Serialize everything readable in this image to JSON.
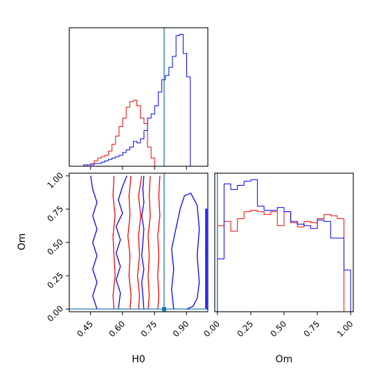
{
  "chart_data": {
    "type": "corner",
    "colors": {
      "series_a": "#ff0000",
      "series_b": "#0000ff",
      "truth": "#1f77b4"
    },
    "truth": {
      "H0": 0.795,
      "Om": 0.0
    },
    "panels": {
      "H0_hist": {
        "type": "histogram",
        "xlim": [
          0.35,
          1.0
        ],
        "x_ticks": [
          0.45,
          0.6,
          0.75,
          0.9
        ],
        "ylabel": "",
        "bins": {
          "start": 0.4,
          "width": 0.0167,
          "series_a": [
            0,
            0,
            1,
            2,
            4,
            6,
            7,
            8,
            11,
            16,
            22,
            29,
            35,
            43,
            47,
            48,
            44,
            35,
            31,
            14,
            6,
            0,
            0,
            0,
            0,
            0,
            0,
            0,
            0,
            0,
            0,
            0,
            0,
            0,
            0,
            0
          ],
          "series_b": [
            0,
            1,
            1,
            1,
            2,
            2,
            3,
            4,
            5,
            6,
            7,
            8,
            10,
            12,
            14,
            18,
            17,
            20,
            26,
            35,
            38,
            44,
            54,
            63,
            66,
            72,
            80,
            95,
            96,
            82,
            65,
            0,
            0,
            0,
            0,
            0
          ]
        }
      },
      "Om_hist": {
        "type": "histogram",
        "xlim": [
          -0.02,
          1.02
        ],
        "xlabel": "Om",
        "x_ticks": [
          "0.00",
          "0.25",
          "0.50",
          "0.75",
          "1.00"
        ],
        "bins": {
          "edges": [
            0.0,
            0.05,
            0.1,
            0.15,
            0.2,
            0.25,
            0.3,
            0.35,
            0.4,
            0.45,
            0.5,
            0.55,
            0.6,
            0.65,
            0.7,
            0.75,
            0.8,
            0.85,
            0.9,
            0.95,
            1.0
          ],
          "series_a": [
            62,
            65,
            58,
            67,
            72,
            73,
            72,
            70,
            72,
            62,
            72,
            64,
            61,
            65,
            64,
            67,
            70,
            69,
            67,
            0
          ],
          "series_b": [
            38,
            92,
            88,
            91,
            94,
            95,
            76,
            73,
            73,
            75,
            72,
            65,
            63,
            62,
            60,
            66,
            65,
            53,
            53,
            30
          ]
        }
      },
      "H0_Om_contour": {
        "type": "contour",
        "xlim": [
          0.35,
          1.0
        ],
        "ylim": [
          -0.02,
          1.02
        ],
        "xlabel": "H0",
        "ylabel": "Om",
        "x_ticks": [
          "0.45",
          "0.60",
          "0.75",
          "0.90"
        ],
        "y_ticks": [
          "0.00",
          "0.25",
          "0.50",
          "0.75",
          "1.00"
        ],
        "series_a_contours": [
          [
            [
              0.56,
              1.0
            ],
            [
              0.555,
              0.85
            ],
            [
              0.565,
              0.7
            ],
            [
              0.555,
              0.55
            ],
            [
              0.56,
              0.4
            ],
            [
              0.565,
              0.25
            ],
            [
              0.555,
              0.1
            ],
            [
              0.56,
              0.0
            ]
          ],
          [
            [
              0.64,
              1.0
            ],
            [
              0.63,
              0.85
            ],
            [
              0.635,
              0.7
            ],
            [
              0.625,
              0.55
            ],
            [
              0.635,
              0.4
            ],
            [
              0.63,
              0.25
            ],
            [
              0.64,
              0.1
            ],
            [
              0.635,
              0.0
            ]
          ],
          [
            [
              0.69,
              1.0
            ],
            [
              0.675,
              0.85
            ],
            [
              0.685,
              0.7
            ],
            [
              0.675,
              0.55
            ],
            [
              0.68,
              0.4
            ],
            [
              0.67,
              0.25
            ],
            [
              0.68,
              0.1
            ],
            [
              0.675,
              0.0
            ]
          ],
          [
            [
              0.73,
              1.0
            ],
            [
              0.725,
              0.85
            ],
            [
              0.73,
              0.7
            ],
            [
              0.72,
              0.55
            ],
            [
              0.725,
              0.4
            ],
            [
              0.72,
              0.25
            ],
            [
              0.725,
              0.1
            ],
            [
              0.72,
              0.0
            ]
          ],
          [
            [
              0.775,
              1.0
            ],
            [
              0.77,
              0.85
            ],
            [
              0.775,
              0.7
            ],
            [
              0.765,
              0.55
            ],
            [
              0.77,
              0.4
            ],
            [
              0.765,
              0.25
            ],
            [
              0.77,
              0.1
            ],
            [
              0.765,
              0.0
            ]
          ]
        ],
        "series_b_contours": [
          [
            [
              0.45,
              1.0
            ],
            [
              0.46,
              0.9
            ],
            [
              0.48,
              0.8
            ],
            [
              0.46,
              0.7
            ],
            [
              0.48,
              0.6
            ],
            [
              0.46,
              0.5
            ],
            [
              0.48,
              0.4
            ],
            [
              0.46,
              0.3
            ],
            [
              0.48,
              0.2
            ],
            [
              0.46,
              0.1
            ],
            [
              0.48,
              0.0
            ]
          ],
          [
            [
              0.62,
              1.0
            ],
            [
              0.6,
              0.92
            ],
            [
              0.58,
              0.82
            ],
            [
              0.6,
              0.72
            ],
            [
              0.57,
              0.62
            ],
            [
              0.59,
              0.52
            ],
            [
              0.57,
              0.42
            ],
            [
              0.59,
              0.32
            ],
            [
              0.57,
              0.22
            ],
            [
              0.59,
              0.12
            ],
            [
              0.58,
              0.0
            ]
          ],
          [
            [
              0.7,
              1.0
            ],
            [
              0.695,
              0.9
            ],
            [
              0.7,
              0.8
            ],
            [
              0.69,
              0.7
            ],
            [
              0.7,
              0.6
            ],
            [
              0.695,
              0.5
            ],
            [
              0.69,
              0.4
            ],
            [
              0.7,
              0.3
            ],
            [
              0.69,
              0.2
            ],
            [
              0.695,
              0.1
            ],
            [
              0.7,
              0.0
            ]
          ],
          [
            [
              0.84,
              0.0
            ],
            [
              0.83,
              0.15
            ],
            [
              0.84,
              0.3
            ],
            [
              0.83,
              0.45
            ],
            [
              0.85,
              0.6
            ],
            [
              0.87,
              0.75
            ],
            [
              0.89,
              0.85
            ],
            [
              0.92,
              0.87
            ],
            [
              0.95,
              0.78
            ],
            [
              0.96,
              0.6
            ],
            [
              0.95,
              0.4
            ],
            [
              0.96,
              0.2
            ],
            [
              0.95,
              0.08
            ],
            [
              0.93,
              0.02
            ],
            [
              0.9,
              0.0
            ]
          ],
          [
            [
              0.99,
              0.0
            ],
            [
              0.99,
              0.75
            ],
            [
              0.995,
              0.75
            ],
            [
              0.995,
              0.0
            ]
          ]
        ]
      }
    }
  }
}
